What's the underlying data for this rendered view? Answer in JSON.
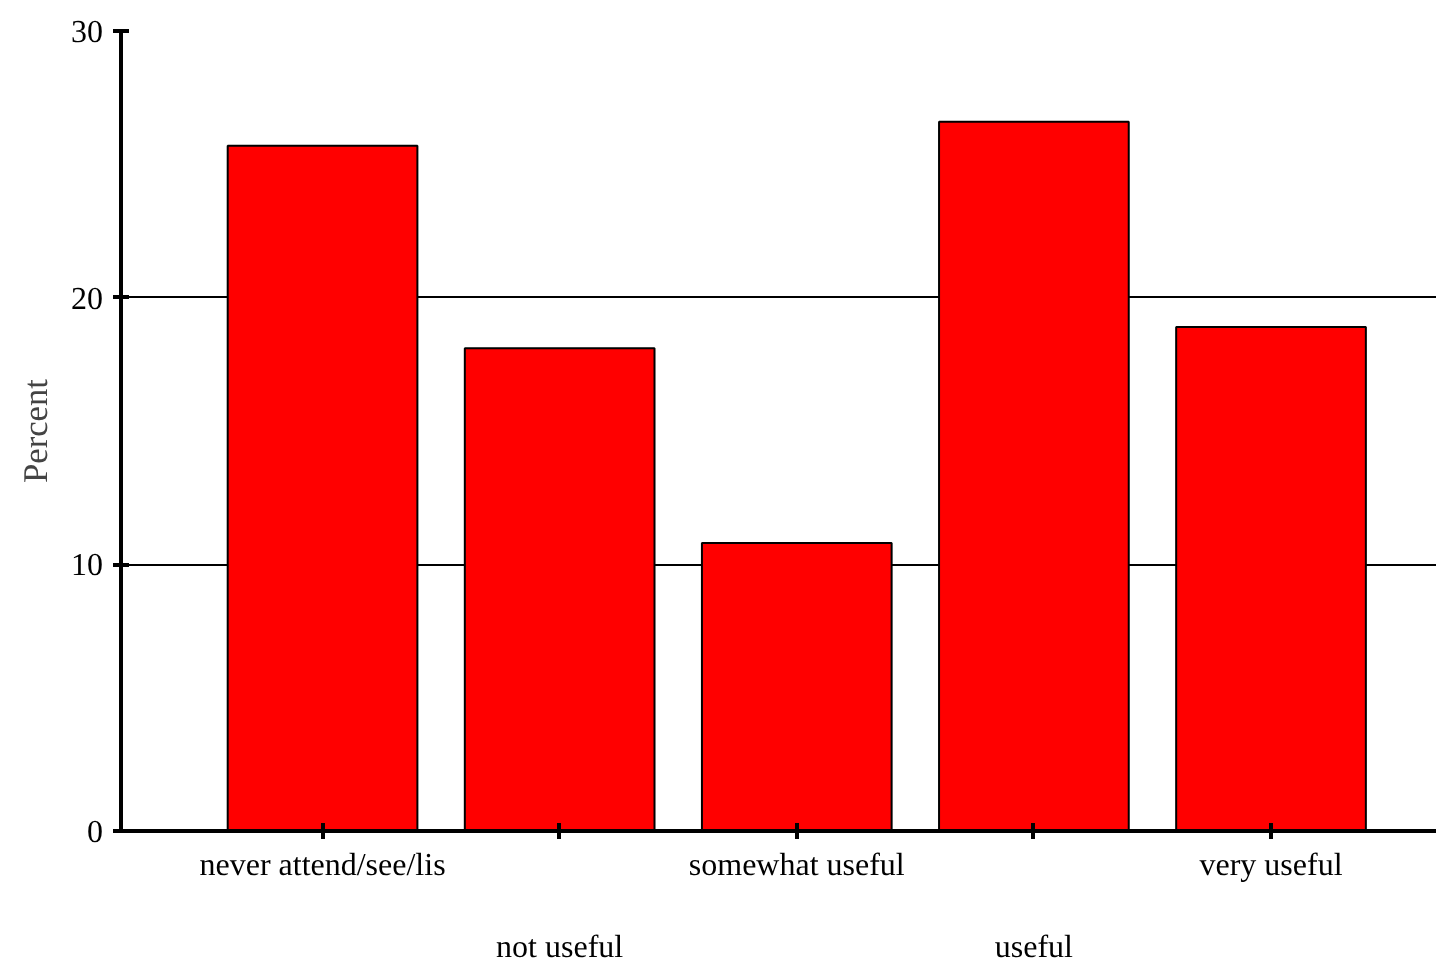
{
  "chart_data": {
    "type": "bar",
    "ylabel": "Percent",
    "categories": [
      "never attend/see/lis",
      "not useful",
      "somewhat useful",
      "useful",
      "very useful"
    ],
    "values": [
      25.7,
      18.1,
      10.8,
      26.6,
      18.9
    ],
    "color": "#ff0000",
    "ylim": [
      0,
      30
    ],
    "yticks": [
      0,
      10,
      20,
      30
    ],
    "grid": "y"
  }
}
